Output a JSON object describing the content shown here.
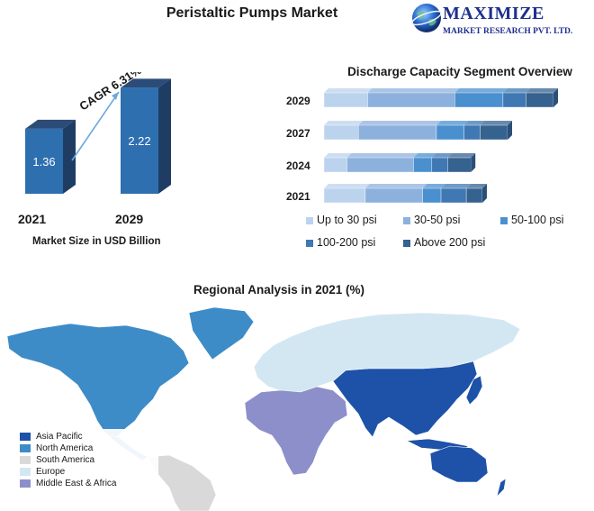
{
  "title": "Peristaltic Pumps Market",
  "logo": {
    "main": "MAXIMIZE",
    "sub": "MARKET RESEARCH PVT. LTD."
  },
  "colors": {
    "bar_front": "#2e6fb0",
    "bar_side": "#1f3d63",
    "bar_top": "#2b4b78"
  },
  "chart_data": [
    {
      "type": "bar",
      "categories": [
        "2021",
        "2029"
      ],
      "values": [
        1.36,
        2.22
      ],
      "data_labels": [
        "1.36",
        "2.22"
      ],
      "xlabel": "Market Size in USD Billion",
      "annotation": "CAGR 6.31%"
    },
    {
      "type": "bar",
      "orientation": "horizontal",
      "stacked": true,
      "title": "Discharge Capacity Segment Overview",
      "categories": [
        "2029",
        "2027",
        "2024",
        "2021"
      ],
      "series": [
        {
          "name": "Up to 30 psi",
          "color": "#bcd3ee",
          "values": [
            19,
            15,
            10,
            18
          ]
        },
        {
          "name": "30-50 psi",
          "color": "#8db1dd",
          "values": [
            38,
            34,
            29,
            25
          ]
        },
        {
          "name": "50-100 psi",
          "color": "#4a90cf",
          "values": [
            21,
            12,
            8,
            8
          ]
        },
        {
          "name": "100-200 psi",
          "color": "#3f78b3",
          "values": [
            10,
            7,
            7,
            11
          ]
        },
        {
          "name": "Above 200 psi",
          "color": "#35628f",
          "values": [
            12,
            12,
            10,
            7
          ]
        }
      ],
      "legend": "bottom"
    }
  ],
  "map": {
    "title": "Regional Analysis in 2021 (%)",
    "legend": [
      {
        "label": "Asia Pacific",
        "color": "#1d52a8"
      },
      {
        "label": "North America",
        "color": "#3d8cc7"
      },
      {
        "label": "South America",
        "color": "#d9d9d9"
      },
      {
        "label": "Europe",
        "color": "#d3e7f3"
      },
      {
        "label": "Middle East & Africa",
        "color": "#8d8fcb"
      }
    ]
  }
}
